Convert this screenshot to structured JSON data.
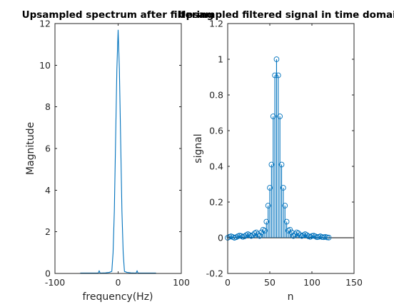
{
  "chart_data": [
    {
      "type": "line",
      "title": "Upsampled spectrum after filtering",
      "xlabel": "frequency(Hz)",
      "ylabel": "Magnitude",
      "xlim": [
        -100,
        100
      ],
      "ylim": [
        0,
        12
      ],
      "xticks": [
        -100,
        0,
        100
      ],
      "yticks": [
        0,
        2,
        4,
        6,
        8,
        10,
        12
      ],
      "grid": false,
      "series": [
        {
          "x": [
            -60,
            -48,
            -40,
            -33,
            -31.5,
            -30,
            -28.5,
            -27,
            -20,
            -14,
            -10,
            -8,
            -6,
            -4,
            -2,
            0,
            2,
            4,
            6,
            8,
            10,
            14,
            20,
            27,
            28.5,
            30,
            31.5,
            33,
            40,
            48,
            60
          ],
          "values": [
            0.02,
            0.02,
            0.02,
            0.02,
            0.02,
            0.12,
            0.02,
            0.02,
            0.03,
            0.05,
            0.1,
            1.0,
            3.0,
            6.4,
            9.8,
            11.7,
            9.8,
            6.4,
            3.0,
            1.0,
            0.1,
            0.05,
            0.03,
            0.02,
            0.02,
            0.12,
            0.02,
            0.02,
            0.02,
            0.02,
            0.02
          ]
        }
      ]
    },
    {
      "type": "stem",
      "title": "Upsampled filtered signal in time domain",
      "xlabel": "n",
      "ylabel": "signal",
      "xlim": [
        0,
        150
      ],
      "ylim": [
        -0.2,
        1.2
      ],
      "xticks": [
        0,
        50,
        100,
        150
      ],
      "yticks": [
        -0.2,
        0,
        0.2,
        0.4,
        0.6,
        0.8,
        1,
        1.2
      ],
      "grid": false,
      "series": [
        {
          "x_start": 0,
          "x_step": 2,
          "values": [
            0.0,
            0.005,
            0.008,
            0.004,
            0.0,
            0.003,
            0.008,
            0.012,
            0.01,
            0.005,
            0.008,
            0.015,
            0.02,
            0.015,
            0.01,
            0.015,
            0.025,
            0.03,
            0.02,
            0.01,
            0.03,
            0.045,
            0.04,
            0.09,
            0.18,
            0.28,
            0.41,
            0.68,
            0.91,
            1.0,
            0.91,
            0.68,
            0.41,
            0.28,
            0.18,
            0.09,
            0.04,
            0.045,
            0.03,
            0.01,
            0.02,
            0.03,
            0.025,
            0.015,
            0.01,
            0.015,
            0.02,
            0.015,
            0.008,
            0.005,
            0.01,
            0.012,
            0.008,
            0.003,
            0.005,
            0.008,
            0.004,
            0.003,
            0.005,
            0.002,
            0.001
          ]
        }
      ]
    }
  ]
}
